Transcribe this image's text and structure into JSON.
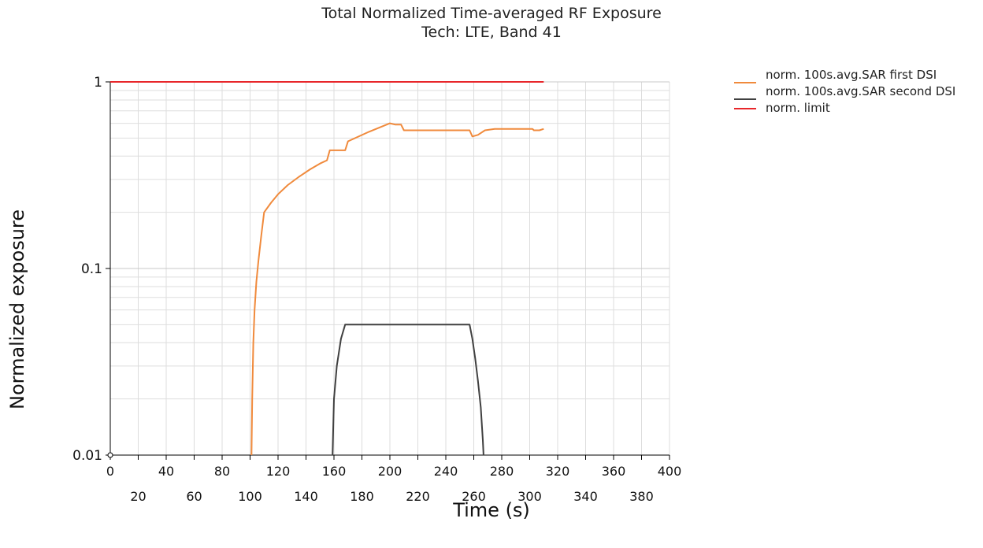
{
  "chart_data": {
    "type": "line",
    "title": "Total Normalized Time-averaged RF Exposure",
    "subtitle": "Tech: LTE, Band 41",
    "xlabel": "Time (s)",
    "ylabel": "Normalized exposure",
    "xlim": [
      0,
      400
    ],
    "ylim": [
      0.01,
      1
    ],
    "yscale": "log",
    "x_ticks_upper": [
      "0",
      "40",
      "80",
      "120",
      "160",
      "200",
      "240",
      "280",
      "320",
      "360",
      "400"
    ],
    "x_ticks_lower": [
      "20",
      "60",
      "100",
      "140",
      "180",
      "220",
      "260",
      "300",
      "340",
      "380"
    ],
    "y_ticks": [
      "0.01",
      "0.1",
      "1"
    ],
    "grid": true,
    "legend_position": "right",
    "series": [
      {
        "name": "norm. 100s.avg.SAR first DSI",
        "color": "#f08a3c",
        "points": [
          [
            101,
            0.01
          ],
          [
            101.5,
            0.02
          ],
          [
            102.3,
            0.04
          ],
          [
            103.2,
            0.06
          ],
          [
            104.5,
            0.085
          ],
          [
            106,
            0.11
          ],
          [
            108,
            0.15
          ],
          [
            110,
            0.2
          ],
          [
            115,
            0.225
          ],
          [
            120,
            0.25
          ],
          [
            127,
            0.28
          ],
          [
            135,
            0.31
          ],
          [
            143,
            0.34
          ],
          [
            150,
            0.365
          ],
          [
            155,
            0.38
          ],
          [
            157,
            0.43
          ],
          [
            168,
            0.43
          ],
          [
            170,
            0.48
          ],
          [
            185,
            0.54
          ],
          [
            200,
            0.6
          ],
          [
            204,
            0.59
          ],
          [
            208,
            0.59
          ],
          [
            210,
            0.55
          ],
          [
            224,
            0.55
          ],
          [
            238,
            0.55
          ],
          [
            257,
            0.55
          ],
          [
            259,
            0.51
          ],
          [
            263,
            0.52
          ],
          [
            268,
            0.55
          ],
          [
            275,
            0.56
          ],
          [
            290,
            0.56
          ],
          [
            302,
            0.56
          ],
          [
            303,
            0.55
          ],
          [
            307,
            0.55
          ],
          [
            310,
            0.56
          ]
        ]
      },
      {
        "name": "norm. 100s.avg.SAR second DSI",
        "color": "#404040",
        "points": [
          [
            159,
            0.01
          ],
          [
            160,
            0.02
          ],
          [
            162,
            0.03
          ],
          [
            165,
            0.042
          ],
          [
            168,
            0.05
          ],
          [
            200,
            0.05
          ],
          [
            240,
            0.05
          ],
          [
            257,
            0.05
          ],
          [
            259,
            0.042
          ],
          [
            261,
            0.033
          ],
          [
            263,
            0.025
          ],
          [
            265,
            0.018
          ],
          [
            266.5,
            0.012
          ],
          [
            267,
            0.01
          ]
        ]
      },
      {
        "name": "norm. limit",
        "color": "#e8262a",
        "points": [
          [
            0,
            1
          ],
          [
            310,
            1
          ]
        ]
      }
    ]
  }
}
